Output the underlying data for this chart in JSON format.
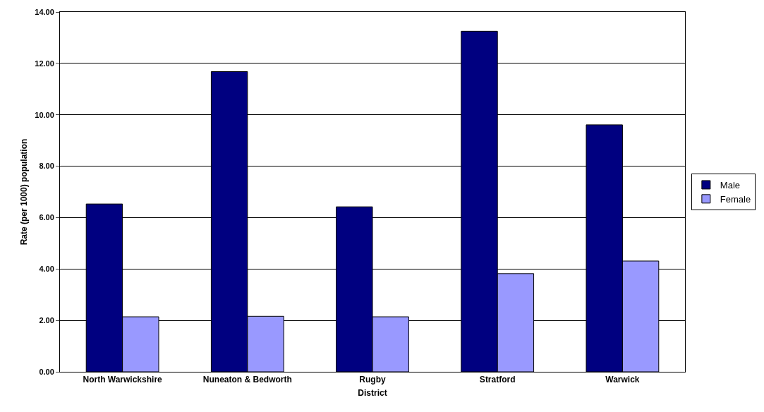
{
  "chart_data": {
    "type": "bar",
    "xlabel": "District",
    "ylabel": "Rate (per 1000) population",
    "categories": [
      "North Warwickshire",
      "Nuneaton & Bedworth",
      "Rugby",
      "Stratford",
      "Warwick"
    ],
    "series": [
      {
        "name": "Male",
        "color": "#000080",
        "values": [
          6.53,
          11.68,
          6.42,
          13.25,
          9.61
        ]
      },
      {
        "name": "Female",
        "color": "#9999ff",
        "values": [
          2.14,
          2.16,
          2.14,
          3.82,
          4.31
        ]
      }
    ],
    "ylim": [
      0,
      14
    ],
    "yticks": [
      {
        "value": 0,
        "label": "0.00"
      },
      {
        "value": 2,
        "label": "2.00"
      },
      {
        "value": 4,
        "label": "4.00"
      },
      {
        "value": 6,
        "label": "6.00"
      },
      {
        "value": 8,
        "label": "8.00"
      },
      {
        "value": 10,
        "label": "10.00"
      },
      {
        "value": 12,
        "label": "12.00"
      },
      {
        "value": 14,
        "label": "14.00"
      }
    ],
    "grid": "y",
    "legend": "right"
  }
}
